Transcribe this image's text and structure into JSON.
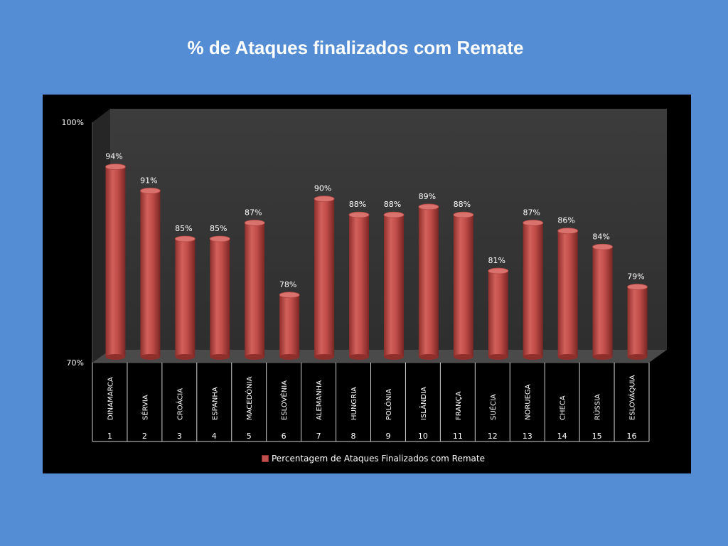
{
  "slide": {
    "title": "% de Ataques finalizados com Remate",
    "background": "#548dd4"
  },
  "chart_data": {
    "type": "bar",
    "style": "3d-cylinder",
    "categories": [
      "DINAMARCA",
      "SÉRVIA",
      "CROÁCIA",
      "ESPANHA",
      "MACEDÓNIA",
      "ESLOVÉNIA",
      "ALEMANHA",
      "HUNGRIA",
      "POLÓNIA",
      "ISLÂNDIA",
      "FRANÇA",
      "SUÉCIA",
      "NORUEGA",
      "CHECA",
      "RÚSSIA",
      "ESLOVÁQUIA"
    ],
    "ranks": [
      "1",
      "2",
      "3",
      "4",
      "5",
      "6",
      "7",
      "8",
      "9",
      "10",
      "11",
      "12",
      "13",
      "14",
      "15",
      "16"
    ],
    "series": [
      {
        "name": "Percentagem de Ataques Finalizados com Remate",
        "values": [
          94,
          91,
          85,
          85,
          87,
          78,
          90,
          88,
          88,
          89,
          88,
          81,
          87,
          86,
          84,
          79
        ],
        "labels": [
          "94%",
          "91%",
          "85%",
          "85%",
          "87%",
          "78%",
          "90%",
          "88%",
          "88%",
          "89%",
          "88%",
          "81%",
          "87%",
          "86%",
          "84%",
          "79%"
        ],
        "color": "#c0504d"
      }
    ],
    "ylim": [
      70,
      100
    ],
    "y_tick_labels": [
      "100%",
      "70%"
    ],
    "legend_position": "bottom",
    "grid": false,
    "plot_background": "#3a3a3a",
    "frame_background": "#000000"
  }
}
